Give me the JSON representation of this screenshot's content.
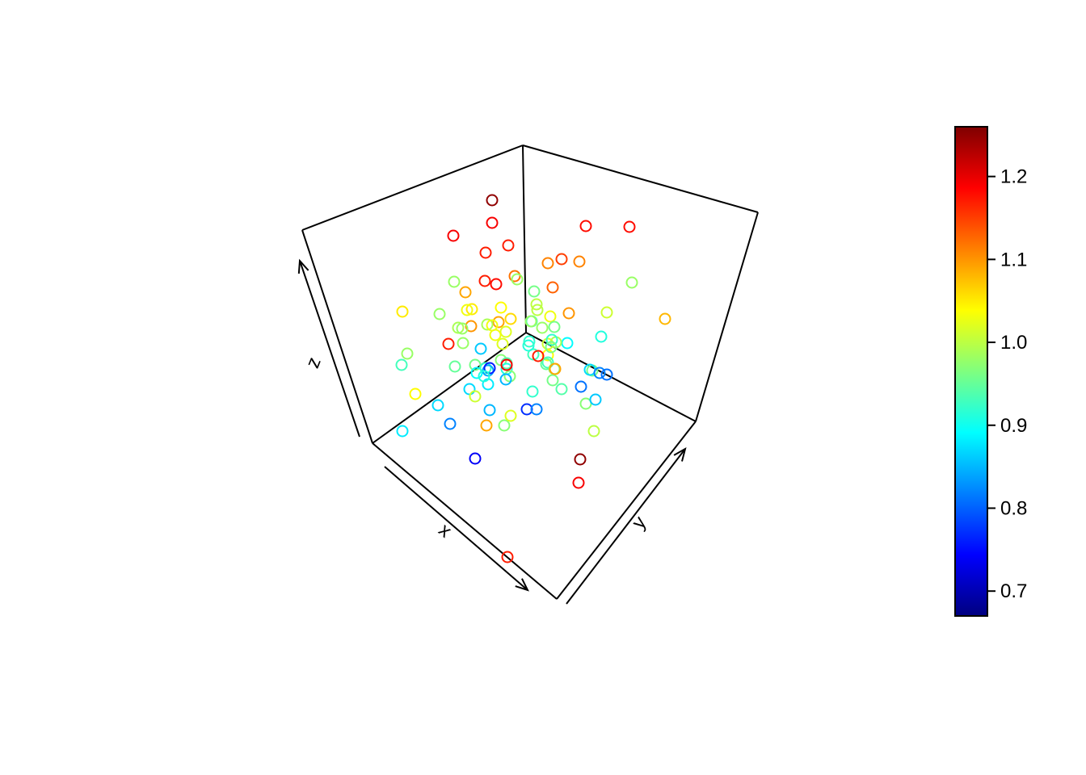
{
  "chart_data": {
    "type": "scatter",
    "title": "",
    "axes": {
      "xlabel": "x",
      "ylabel": "y",
      "zlabel": "z"
    },
    "colorbar": {
      "min": 0.67,
      "max": 1.26,
      "ticks": [
        "0.7",
        "0.8",
        "0.9",
        "1.0",
        "1.1",
        "1.2"
      ],
      "tick_values": [
        0.7,
        0.8,
        0.9,
        1.0,
        1.1,
        1.2
      ],
      "palette": "jet",
      "colors": [
        "#00007F",
        "#0000FF",
        "#007FFF",
        "#00FFFF",
        "#7FFF7F",
        "#FFFF00",
        "#FF7F00",
        "#FF0000",
        "#7F0000"
      ]
    },
    "points_note": "",
    "values": [
      1.25,
      1.19,
      1.19,
      1.17,
      1.17,
      1.18,
      1.18,
      1.11,
      1.15,
      1.18,
      1.17,
      1.13,
      1.12,
      0.98,
      1.11,
      1.09,
      1.05,
      1.03,
      0.98,
      1.06,
      1.09,
      1.1,
      1.03,
      0.99,
      1.1,
      0.98,
      1.02,
      0.99,
      1.03,
      1.04,
      0.96,
      1.0,
      1.0,
      0.98,
      1.05,
      0.98,
      1.08,
      1.17,
      0.94,
      0.98,
      1.01,
      1.02,
      0.98,
      0.96,
      0.91,
      0.89,
      0.99,
      1.01,
      1.03,
      0.93,
      0.91,
      0.86,
      0.98,
      0.93,
      0.95,
      0.96,
      0.97,
      0.89,
      0.92,
      0.94,
      0.84,
      0.76,
      0.91,
      0.87,
      0.88,
      1.01,
      0.92,
      0.98,
      0.92,
      1.04,
      0.96,
      0.97,
      0.91,
      0.92,
      0.93,
      0.95,
      0.97,
      1.09,
      0.96,
      0.87,
      0.82,
      0.81,
      0.81,
      0.96,
      0.94,
      0.85,
      1.04,
      0.85,
      0.87,
      0.82,
      0.88,
      0.97,
      1.02,
      0.77,
      0.82,
      0.97,
      0.86,
      1.0,
      1.09,
      0.74
    ]
  }
}
